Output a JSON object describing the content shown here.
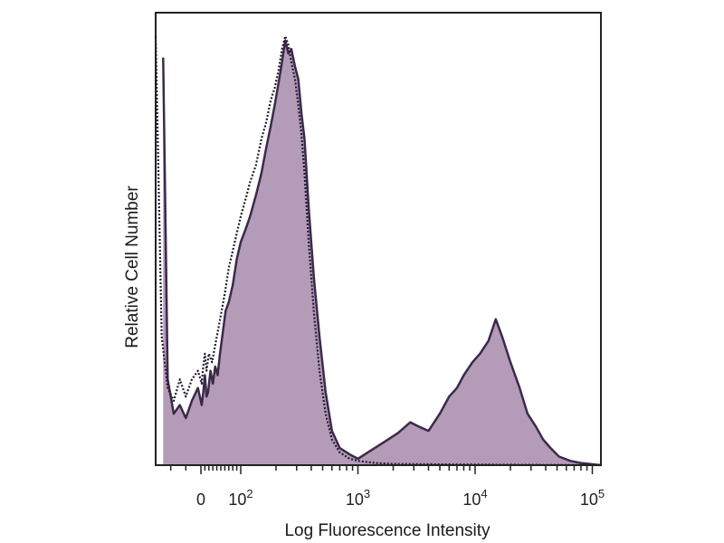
{
  "chart_data": {
    "type": "area",
    "title": "",
    "xlabel": "Log Fluorescence Intensity",
    "ylabel": "Relative Cell Number",
    "x_scale": "biexponential (log above 10^2)",
    "xlim": [
      -30,
      150000
    ],
    "ylim": [
      0,
      100
    ],
    "grid": false,
    "legend": "none",
    "x_tick_labels": [
      {
        "value": 0,
        "base": "0",
        "exp": ""
      },
      {
        "value": 100,
        "base": "10",
        "exp": "2"
      },
      {
        "value": 1000,
        "base": "10",
        "exp": "3"
      },
      {
        "value": 10000,
        "base": "10",
        "exp": "4"
      },
      {
        "value": 100000,
        "base": "10",
        "exp": "5"
      }
    ],
    "series": [
      {
        "style": "filled",
        "color": "#a78aac",
        "outline": "#3b2a4a",
        "points": [
          [
            -25,
            95
          ],
          [
            -22,
            20
          ],
          [
            -18,
            12
          ],
          [
            -14,
            14
          ],
          [
            -10,
            11
          ],
          [
            -6,
            15
          ],
          [
            -2,
            18
          ],
          [
            2,
            14
          ],
          [
            6,
            17
          ],
          [
            10,
            21
          ],
          [
            14,
            16
          ],
          [
            18,
            17
          ],
          [
            24,
            22
          ],
          [
            30,
            19
          ],
          [
            36,
            23
          ],
          [
            42,
            21
          ],
          [
            48,
            26
          ],
          [
            55,
            31
          ],
          [
            62,
            36
          ],
          [
            70,
            38
          ],
          [
            80,
            42
          ],
          [
            90,
            48
          ],
          [
            100,
            52
          ],
          [
            110,
            55
          ],
          [
            120,
            58
          ],
          [
            135,
            63
          ],
          [
            150,
            68
          ],
          [
            165,
            74
          ],
          [
            180,
            79
          ],
          [
            195,
            84
          ],
          [
            210,
            89
          ],
          [
            225,
            94
          ],
          [
            240,
            99
          ],
          [
            255,
            96
          ],
          [
            270,
            97
          ],
          [
            290,
            93
          ],
          [
            310,
            90
          ],
          [
            330,
            82
          ],
          [
            350,
            76
          ],
          [
            380,
            60
          ],
          [
            420,
            44
          ],
          [
            470,
            30
          ],
          [
            530,
            17
          ],
          [
            600,
            8
          ],
          [
            700,
            4
          ],
          [
            850,
            2.5
          ],
          [
            1000,
            1.5
          ],
          [
            1300,
            3.5
          ],
          [
            1700,
            5.5
          ],
          [
            2200,
            7.5
          ],
          [
            2800,
            10
          ],
          [
            3300,
            9
          ],
          [
            4000,
            8
          ],
          [
            5000,
            12
          ],
          [
            6000,
            16
          ],
          [
            7000,
            18
          ],
          [
            8000,
            21
          ],
          [
            9500,
            24
          ],
          [
            11000,
            26
          ],
          [
            13000,
            29
          ],
          [
            15000,
            34
          ],
          [
            17000,
            30
          ],
          [
            20000,
            24
          ],
          [
            24000,
            18
          ],
          [
            28000,
            12
          ],
          [
            33000,
            9
          ],
          [
            38000,
            6
          ],
          [
            44000,
            4
          ],
          [
            52000,
            2
          ],
          [
            65000,
            1
          ],
          [
            80000,
            0.5
          ],
          [
            150000,
            0
          ]
        ]
      },
      {
        "style": "dotted",
        "color": "#1f1a2e",
        "points": [
          [
            -30,
            100
          ],
          [
            -26,
            30
          ],
          [
            -22,
            18
          ],
          [
            -18,
            15
          ],
          [
            -14,
            20
          ],
          [
            -10,
            16
          ],
          [
            -6,
            20
          ],
          [
            -2,
            22
          ],
          [
            2,
            19
          ],
          [
            6,
            23
          ],
          [
            10,
            26
          ],
          [
            14,
            22
          ],
          [
            20,
            26
          ],
          [
            28,
            24
          ],
          [
            36,
            28
          ],
          [
            44,
            32
          ],
          [
            52,
            36
          ],
          [
            60,
            40
          ],
          [
            70,
            46
          ],
          [
            80,
            50
          ],
          [
            90,
            54
          ],
          [
            100,
            58
          ],
          [
            110,
            62
          ],
          [
            120,
            66
          ],
          [
            135,
            70
          ],
          [
            150,
            76
          ],
          [
            165,
            80
          ],
          [
            180,
            85
          ],
          [
            195,
            88
          ],
          [
            210,
            92
          ],
          [
            225,
            97
          ],
          [
            240,
            100
          ],
          [
            255,
            98
          ],
          [
            270,
            94
          ],
          [
            290,
            90
          ],
          [
            310,
            84
          ],
          [
            330,
            77
          ],
          [
            350,
            68
          ],
          [
            380,
            52
          ],
          [
            420,
            36
          ],
          [
            470,
            22
          ],
          [
            530,
            12
          ],
          [
            600,
            6
          ],
          [
            700,
            3
          ],
          [
            850,
            1.5
          ],
          [
            1000,
            1
          ],
          [
            1400,
            0.5
          ],
          [
            2000,
            0.3
          ],
          [
            5000,
            0.2
          ],
          [
            20000,
            0.1
          ],
          [
            150000,
            0
          ]
        ]
      }
    ]
  }
}
